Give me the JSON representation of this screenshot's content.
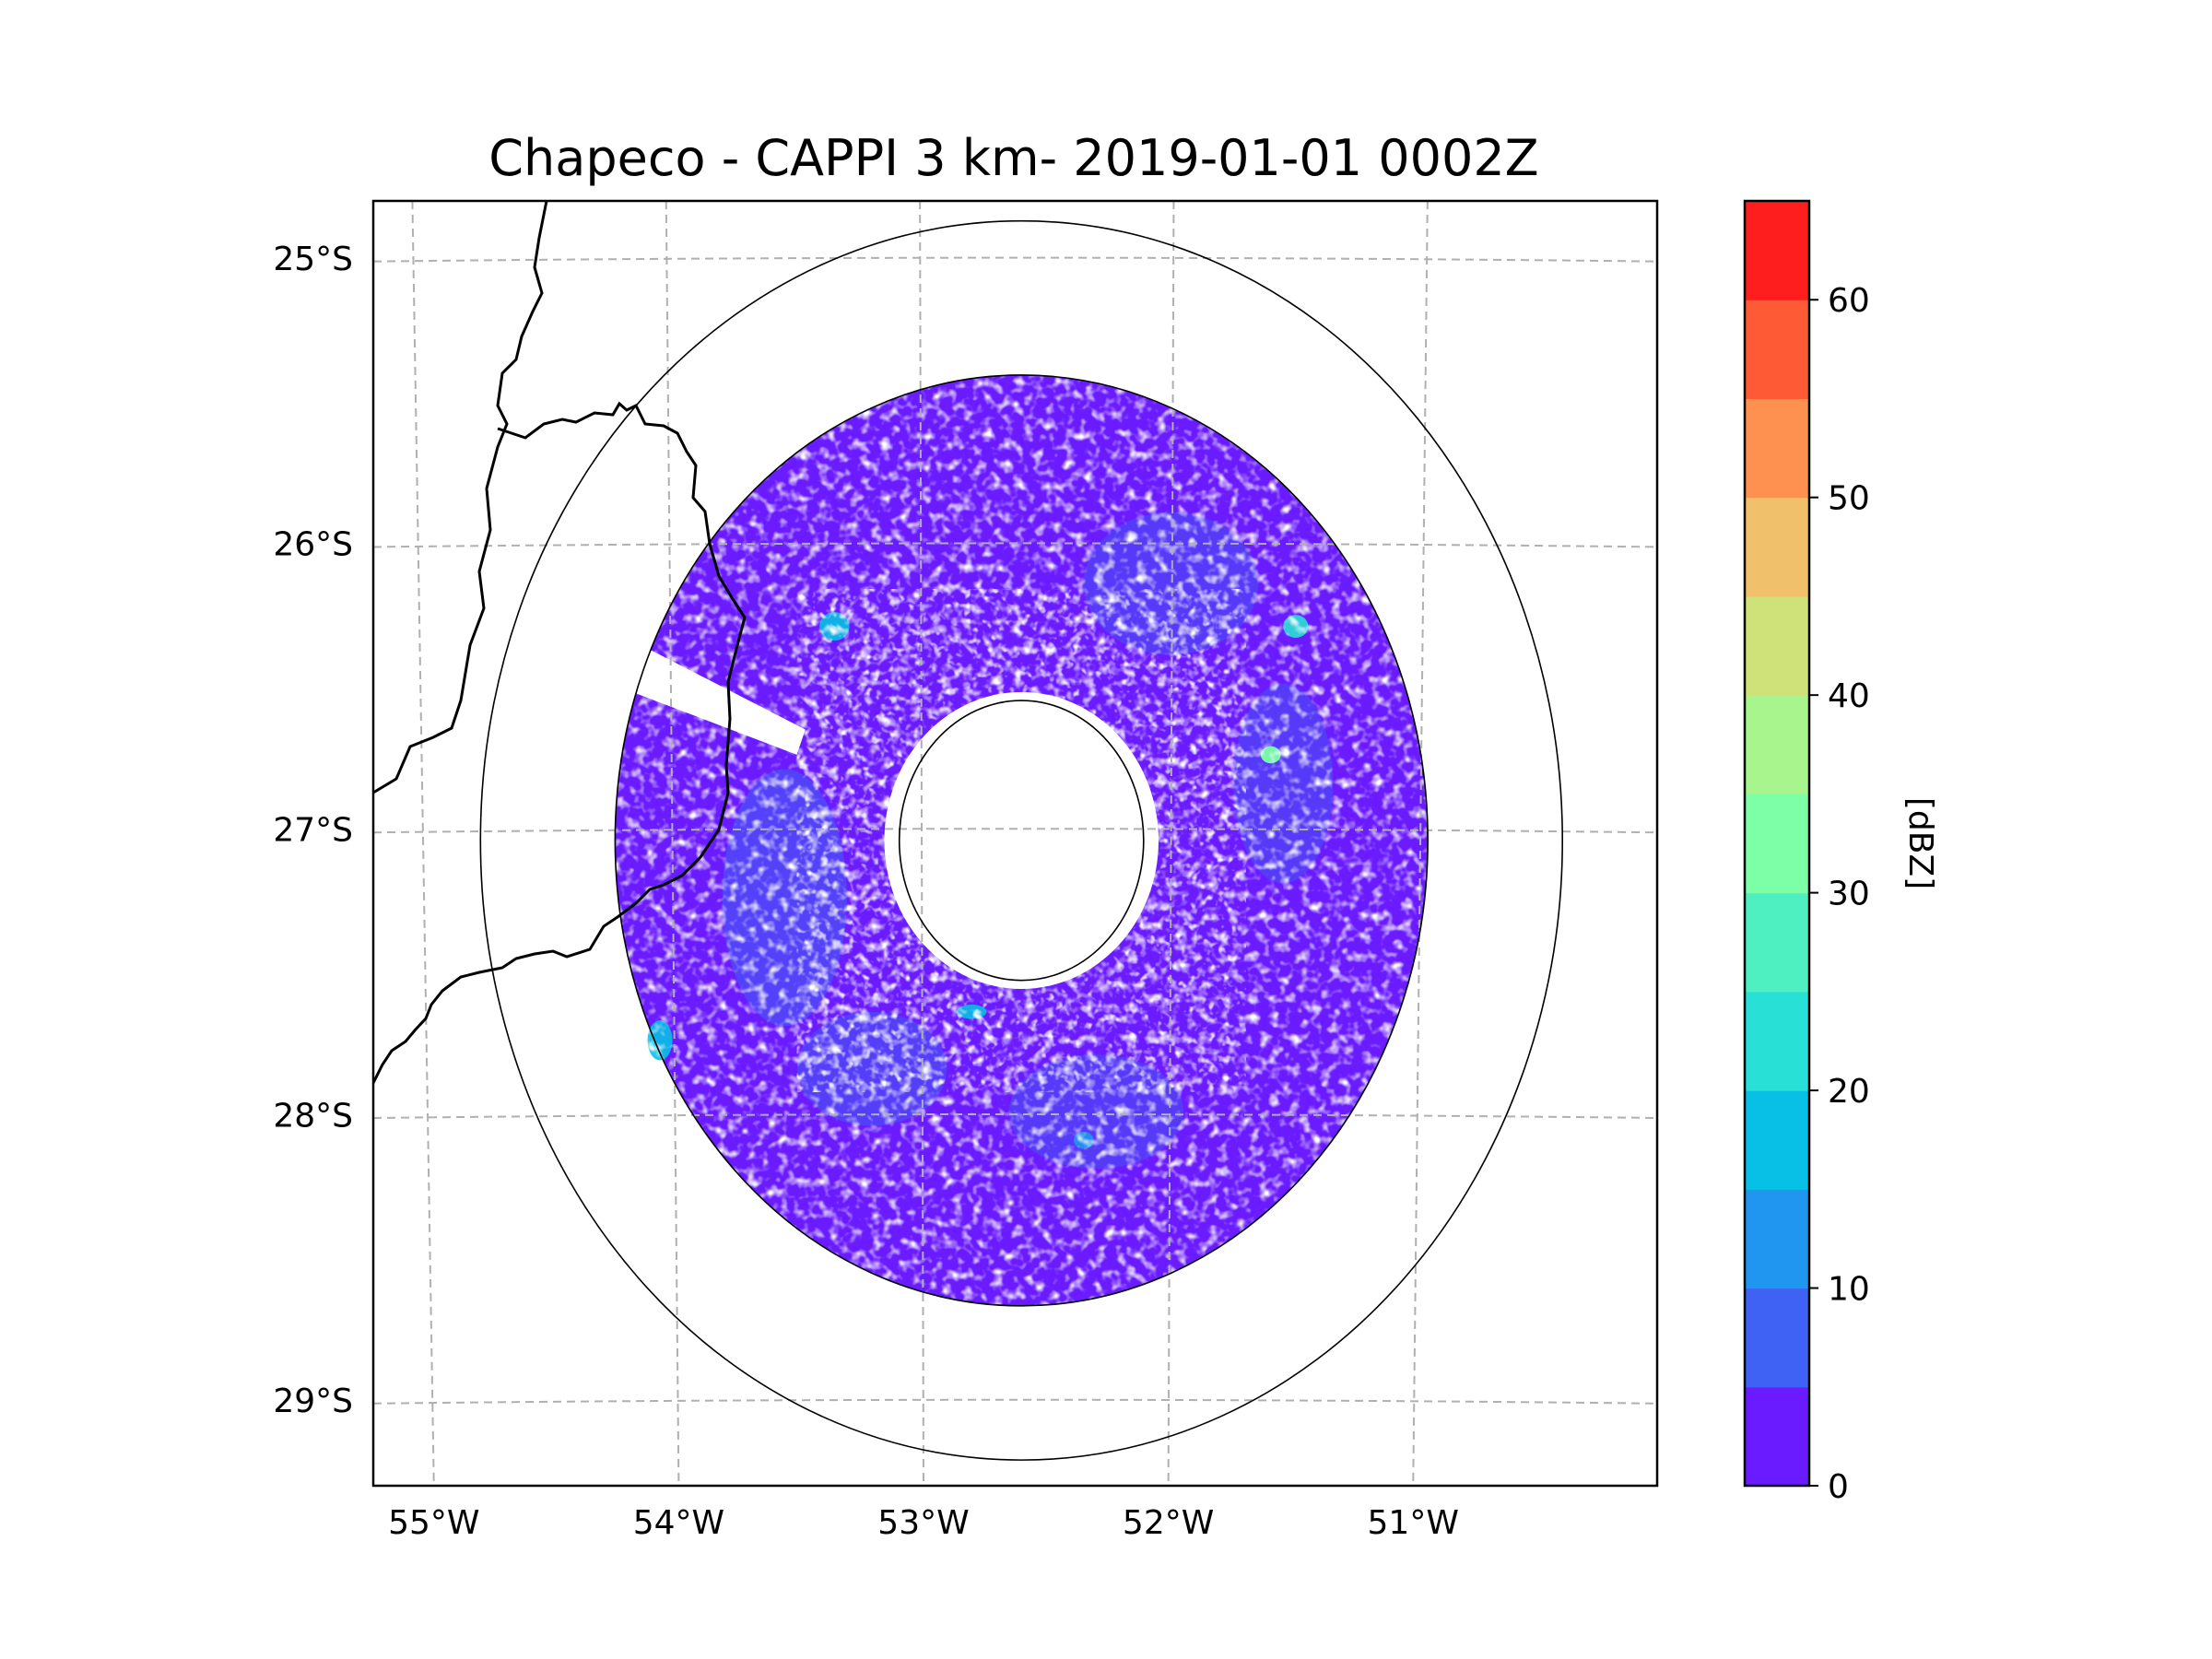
{
  "chart_data": {
    "type": "heatmap",
    "title": "Chapeco - CAPPI 3 km- 2019-01-01 0002Z",
    "radar_site": "Chapeco",
    "product": "CAPPI 3 km",
    "datetime": "2019-01-01 0002Z",
    "x_range_lon": [
      -55.2,
      -50.05
    ],
    "y_range_lat": [
      -29.3,
      -24.8
    ],
    "radar_center": {
      "lon": -52.6,
      "lat": -27.04
    },
    "range_rings_deg": [
      0.49,
      1.63,
      2.17
    ],
    "lon_ticks": [
      {
        "value": -55,
        "label": "55°W"
      },
      {
        "value": -54,
        "label": "54°W"
      },
      {
        "value": -53,
        "label": "53°W"
      },
      {
        "value": -52,
        "label": "52°W"
      },
      {
        "value": -51,
        "label": "51°W"
      }
    ],
    "lat_ticks": [
      {
        "value": -25,
        "label": "25°S"
      },
      {
        "value": -26,
        "label": "26°S"
      },
      {
        "value": -27,
        "label": "27°S"
      },
      {
        "value": -28,
        "label": "28°S"
      },
      {
        "value": -29,
        "label": "29°S"
      }
    ],
    "grid": true,
    "colorbar": {
      "label": "[dBZ]",
      "min": 0,
      "max": 65,
      "levels": [
        0,
        5,
        10,
        15,
        20,
        25,
        30,
        35,
        40,
        45,
        50,
        55,
        60,
        65
      ],
      "colors": [
        "#6a1bff",
        "#3f62f5",
        "#2196f0",
        "#08bfe6",
        "#29e0d6",
        "#4ef0c2",
        "#7dffa8",
        "#a7f58c",
        "#cfe27a",
        "#f1c06a",
        "#ff9150",
        "#ff5a36",
        "#ff1e1e"
      ],
      "tick_labels": [
        {
          "value": 0,
          "label": "0"
        },
        {
          "value": 10,
          "label": "10"
        },
        {
          "value": 20,
          "label": "20"
        },
        {
          "value": 30,
          "label": "30"
        },
        {
          "value": 40,
          "label": "40"
        },
        {
          "value": 50,
          "label": "50"
        },
        {
          "value": 60,
          "label": "60"
        }
      ]
    },
    "echo_summary": "Mostly weak echoes 0-5 dBZ across the 1.63 deg radar disk, clear zone near the center, isolated cells 10-25 dBZ"
  }
}
